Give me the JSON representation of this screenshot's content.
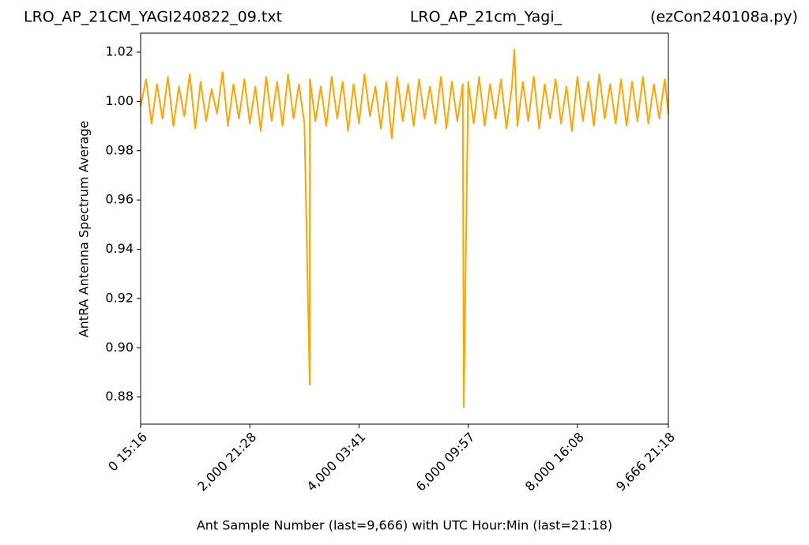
{
  "chart_data": {
    "type": "line",
    "title_left": "LRO_AP_21CM_YAGI240822_09.txt",
    "title": "LRO_AP_21cm_Yagi_",
    "title_right": "(ezCon240108a.py)",
    "x_label": "Ant Sample Number (last=9,666) with UTC Hour:Min (last=21:18)",
    "y_label": "AntRA Antenna Spectrum Average",
    "color": "#ffa500",
    "x": [
      0,
      100,
      200,
      300,
      400,
      500,
      600,
      700,
      800,
      900,
      1000,
      1100,
      1200,
      1300,
      1400,
      1500,
      1600,
      1700,
      1800,
      1900,
      2000,
      2100,
      2200,
      2300,
      2400,
      2500,
      2600,
      2700,
      2800,
      2900,
      3000,
      3097,
      3100,
      3200,
      3300,
      3400,
      3500,
      3600,
      3700,
      3800,
      3900,
      4000,
      4100,
      4200,
      4300,
      4400,
      4500,
      4600,
      4700,
      4800,
      4900,
      5000,
      5100,
      5200,
      5300,
      5400,
      5500,
      5600,
      5700,
      5800,
      5900,
      5918,
      6000,
      6100,
      6200,
      6300,
      6400,
      6500,
      6600,
      6700,
      6800,
      6845,
      6900,
      7000,
      7100,
      7200,
      7300,
      7400,
      7500,
      7600,
      7700,
      7800,
      7900,
      8000,
      8100,
      8200,
      8300,
      8400,
      8500,
      8600,
      8700,
      8800,
      8900,
      9000,
      9100,
      9200,
      9300,
      9400,
      9500,
      9600,
      9666
    ],
    "values": [
      0.998,
      1.009,
      0.991,
      1.007,
      0.993,
      1.01,
      0.99,
      1.006,
      0.994,
      1.011,
      0.989,
      1.008,
      0.992,
      1.005,
      0.995,
      1.012,
      0.99,
      1.007,
      0.993,
      1.009,
      0.991,
      1.006,
      0.988,
      1.01,
      0.992,
      1.008,
      0.99,
      1.011,
      0.993,
      1.007,
      0.991,
      0.885,
      1.009,
      0.992,
      1.006,
      0.99,
      1.01,
      0.993,
      1.008,
      0.988,
      1.007,
      0.991,
      1.011,
      0.994,
      1.006,
      0.989,
      1.008,
      0.985,
      1.01,
      0.992,
      1.007,
      0.99,
      1.009,
      0.993,
      1.006,
      0.991,
      1.01,
      0.989,
      1.008,
      0.992,
      1.007,
      0.876,
      1.008,
      0.991,
      1.01,
      0.99,
      1.007,
      0.993,
      1.009,
      0.989,
      1.006,
      1.021,
      0.99,
      1.008,
      0.992,
      1.01,
      0.989,
      1.007,
      0.993,
      1.009,
      0.991,
      1.006,
      0.988,
      1.01,
      0.992,
      1.008,
      0.99,
      1.011,
      0.993,
      1.007,
      0.991,
      1.009,
      0.99,
      1.008,
      0.992,
      1.01,
      0.991,
      1.007,
      0.993,
      1.009,
      0.995
    ],
    "xlim": [
      0,
      9666
    ],
    "ylim": [
      0.869,
      1.0277
    ],
    "xticks": [
      {
        "value": 0,
        "label": "0  15:16"
      },
      {
        "value": 2000,
        "label": "2,000  21:28"
      },
      {
        "value": 4000,
        "label": "4,000  03:41"
      },
      {
        "value": 6000,
        "label": "6,000  09:57"
      },
      {
        "value": 8000,
        "label": "8,000  16:08"
      },
      {
        "value": 9666,
        "label": "9,666  21:18"
      }
    ],
    "yticks": [
      0.88,
      {
        "value": 0.9,
        "label": "0.90"
      },
      0.92,
      0.94,
      0.96,
      0.98,
      {
        "value": 1,
        "label": "1.00"
      },
      1.02
    ]
  }
}
